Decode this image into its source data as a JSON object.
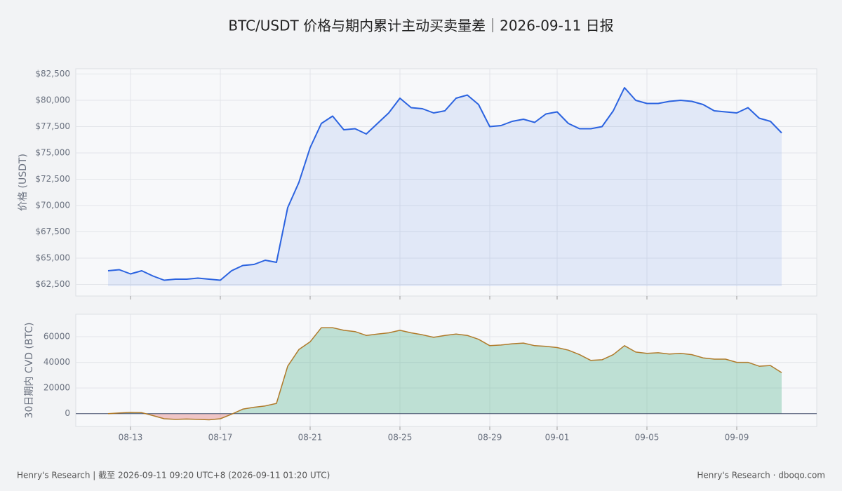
{
  "title": "BTC/USDT 价格与期内累计主动买卖量差｜2026-09-11 日报",
  "footer_left": "Henry's Research | 截至 2026-09-11 09:20 UTC+8 (2026-09-11 01:20 UTC)",
  "footer_right": "Henry's Research · dboqo.com",
  "chart_data": [
    {
      "type": "line",
      "y_label": "价格 (USDT)",
      "color": "#2b63e0",
      "fill": "rgba(43,99,224,0.10)",
      "grid": true,
      "ylim": [
        61400,
        83000
      ],
      "yticks": [
        {
          "value": 62500,
          "label": "$62,500"
        },
        {
          "value": 65000,
          "label": "$65,000"
        },
        {
          "value": 67500,
          "label": "$67,500"
        },
        {
          "value": 70000,
          "label": "$70,000"
        },
        {
          "value": 72500,
          "label": "$72,500"
        },
        {
          "value": 75000,
          "label": "$75,000"
        },
        {
          "value": 77500,
          "label": "$77,500"
        },
        {
          "value": 80000,
          "label": "$80,000"
        },
        {
          "value": 82500,
          "label": "$82,500"
        }
      ],
      "values": [
        63800,
        63900,
        63500,
        63800,
        63300,
        62900,
        63000,
        63000,
        63100,
        63000,
        62900,
        63800,
        64300,
        64400,
        64800,
        64600,
        69800,
        72200,
        75500,
        77800,
        78500,
        77200,
        77300,
        76800,
        77800,
        78800,
        80200,
        79300,
        79200,
        78800,
        79000,
        80200,
        80500,
        79600,
        77500,
        77600,
        78000,
        78200,
        77900,
        78700,
        78900,
        77800,
        77300,
        77300,
        77500,
        79000,
        81200,
        80000,
        79700,
        79700,
        79900,
        80000,
        79900,
        79600,
        79000,
        78900,
        78800,
        79300,
        78300,
        78000,
        76900
      ]
    },
    {
      "type": "area",
      "y_label": "30日期内 CVD (BTC)",
      "color": "#b07a2a",
      "positive_color": "rgba(70,175,135,0.32)",
      "negative_color": "rgba(225,90,90,0.32)",
      "grid": true,
      "ylim": [
        -10000,
        77500
      ],
      "yticks": [
        0,
        20000,
        40000,
        60000
      ],
      "categories": [
        null,
        null,
        "08-13",
        null,
        null,
        null,
        null,
        null,
        null,
        null,
        "08-17",
        null,
        null,
        null,
        null,
        null,
        null,
        null,
        "08-21",
        null,
        null,
        null,
        null,
        null,
        null,
        null,
        "08-25",
        null,
        null,
        null,
        null,
        null,
        null,
        null,
        "08-29",
        null,
        null,
        null,
        null,
        null,
        "09-01",
        null,
        null,
        null,
        null,
        null,
        null,
        null,
        "09-05",
        null,
        null,
        null,
        null,
        null,
        null,
        null,
        "09-09",
        null,
        null,
        null,
        null
      ],
      "values": [
        0,
        500,
        1000,
        800,
        -1500,
        -4000,
        -4500,
        -4200,
        -4500,
        -4800,
        -4000,
        -500,
        3500,
        5000,
        6000,
        8000,
        37000,
        50000,
        56000,
        67000,
        67000,
        65000,
        64000,
        61000,
        62000,
        63000,
        65000,
        63000,
        61500,
        59500,
        61000,
        62000,
        61000,
        58000,
        53000,
        53500,
        54500,
        55000,
        53000,
        52500,
        51500,
        49500,
        46000,
        41500,
        42000,
        46000,
        53000,
        48000,
        47000,
        47500,
        46500,
        47000,
        46000,
        43500,
        42500,
        42500,
        40000,
        40000,
        37000,
        37500,
        32000
      ]
    }
  ]
}
